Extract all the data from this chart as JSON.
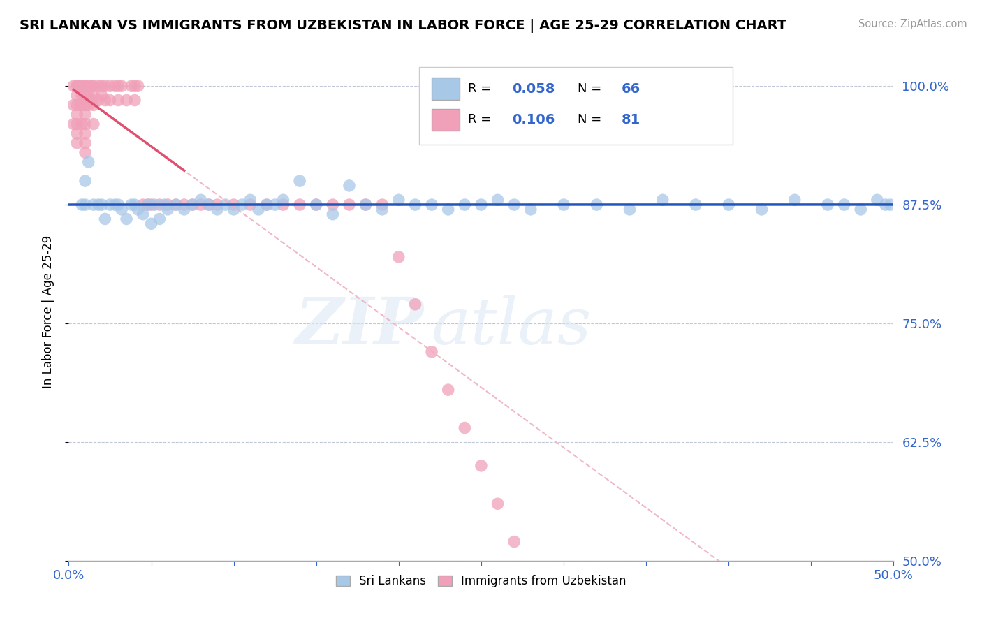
{
  "title": "SRI LANKAN VS IMMIGRANTS FROM UZBEKISTAN IN LABOR FORCE | AGE 25-29 CORRELATION CHART",
  "source": "Source: ZipAtlas.com",
  "ylabel": "In Labor Force | Age 25-29",
  "xlim": [
    0.0,
    0.5
  ],
  "ylim": [
    0.5,
    1.025
  ],
  "xticks": [
    0.0,
    0.05,
    0.1,
    0.15,
    0.2,
    0.25,
    0.3,
    0.35,
    0.4,
    0.45,
    0.5
  ],
  "yticks": [
    0.5,
    0.625,
    0.75,
    0.875,
    1.0
  ],
  "yticklabels": [
    "50.0%",
    "62.5%",
    "75.0%",
    "87.5%",
    "100.0%"
  ],
  "blue_R": 0.058,
  "blue_N": 66,
  "pink_R": 0.106,
  "pink_N": 81,
  "blue_color": "#a8c8e8",
  "pink_color": "#f0a0b8",
  "blue_line_color": "#2255bb",
  "pink_line_color": "#e05070",
  "pink_dash_color": "#f0b0c0",
  "legend_label_blue": "Sri Lankans",
  "legend_label_pink": "Immigrants from Uzbekistan",
  "watermark": "ZIPatlas",
  "blue_scatter_x": [
    0.008,
    0.01,
    0.01,
    0.012,
    0.015,
    0.018,
    0.02,
    0.022,
    0.025,
    0.028,
    0.03,
    0.032,
    0.035,
    0.038,
    0.04,
    0.042,
    0.045,
    0.048,
    0.05,
    0.052,
    0.055,
    0.058,
    0.06,
    0.065,
    0.07,
    0.075,
    0.08,
    0.085,
    0.09,
    0.095,
    0.1,
    0.105,
    0.11,
    0.115,
    0.12,
    0.125,
    0.13,
    0.14,
    0.15,
    0.16,
    0.17,
    0.18,
    0.19,
    0.2,
    0.21,
    0.22,
    0.23,
    0.24,
    0.25,
    0.26,
    0.27,
    0.28,
    0.3,
    0.32,
    0.34,
    0.36,
    0.38,
    0.4,
    0.42,
    0.44,
    0.46,
    0.47,
    0.48,
    0.49,
    0.495,
    0.498
  ],
  "blue_scatter_y": [
    0.875,
    0.9,
    0.875,
    0.92,
    0.875,
    0.875,
    0.875,
    0.86,
    0.875,
    0.875,
    0.875,
    0.87,
    0.86,
    0.875,
    0.875,
    0.87,
    0.865,
    0.875,
    0.855,
    0.875,
    0.86,
    0.875,
    0.87,
    0.875,
    0.87,
    0.875,
    0.88,
    0.875,
    0.87,
    0.875,
    0.87,
    0.875,
    0.88,
    0.87,
    0.875,
    0.875,
    0.88,
    0.9,
    0.875,
    0.865,
    0.895,
    0.875,
    0.87,
    0.88,
    0.875,
    0.875,
    0.87,
    0.875,
    0.875,
    0.88,
    0.875,
    0.87,
    0.875,
    0.875,
    0.87,
    0.88,
    0.875,
    0.875,
    0.87,
    0.88,
    0.875,
    0.875,
    0.87,
    0.88,
    0.875,
    0.875
  ],
  "pink_scatter_x": [
    0.003,
    0.003,
    0.003,
    0.005,
    0.005,
    0.005,
    0.005,
    0.005,
    0.005,
    0.005,
    0.005,
    0.007,
    0.007,
    0.008,
    0.008,
    0.008,
    0.008,
    0.01,
    0.01,
    0.01,
    0.01,
    0.01,
    0.01,
    0.01,
    0.01,
    0.01,
    0.012,
    0.012,
    0.012,
    0.014,
    0.014,
    0.015,
    0.015,
    0.015,
    0.015,
    0.018,
    0.018,
    0.02,
    0.02,
    0.022,
    0.022,
    0.025,
    0.025,
    0.028,
    0.03,
    0.03,
    0.032,
    0.035,
    0.038,
    0.04,
    0.04,
    0.042,
    0.045,
    0.048,
    0.05,
    0.055,
    0.06,
    0.065,
    0.07,
    0.075,
    0.08,
    0.085,
    0.09,
    0.1,
    0.11,
    0.12,
    0.13,
    0.14,
    0.15,
    0.16,
    0.17,
    0.18,
    0.19,
    0.2,
    0.21,
    0.22,
    0.23,
    0.24,
    0.25,
    0.26,
    0.27
  ],
  "pink_scatter_y": [
    1.0,
    0.98,
    0.96,
    1.0,
    1.0,
    0.99,
    0.98,
    0.97,
    0.96,
    0.95,
    0.94,
    1.0,
    0.98,
    1.0,
    0.99,
    0.98,
    0.96,
    1.0,
    1.0,
    0.99,
    0.98,
    0.97,
    0.96,
    0.95,
    0.94,
    0.93,
    1.0,
    0.99,
    0.98,
    1.0,
    0.985,
    1.0,
    0.99,
    0.98,
    0.96,
    1.0,
    0.985,
    1.0,
    0.99,
    1.0,
    0.985,
    1.0,
    0.985,
    1.0,
    1.0,
    0.985,
    1.0,
    0.985,
    1.0,
    1.0,
    0.985,
    1.0,
    0.875,
    0.875,
    0.875,
    0.875,
    0.875,
    0.875,
    0.875,
    0.875,
    0.875,
    0.875,
    0.875,
    0.875,
    0.875,
    0.875,
    0.875,
    0.875,
    0.875,
    0.875,
    0.875,
    0.875,
    0.875,
    0.82,
    0.77,
    0.72,
    0.68,
    0.64,
    0.6,
    0.56,
    0.52
  ]
}
